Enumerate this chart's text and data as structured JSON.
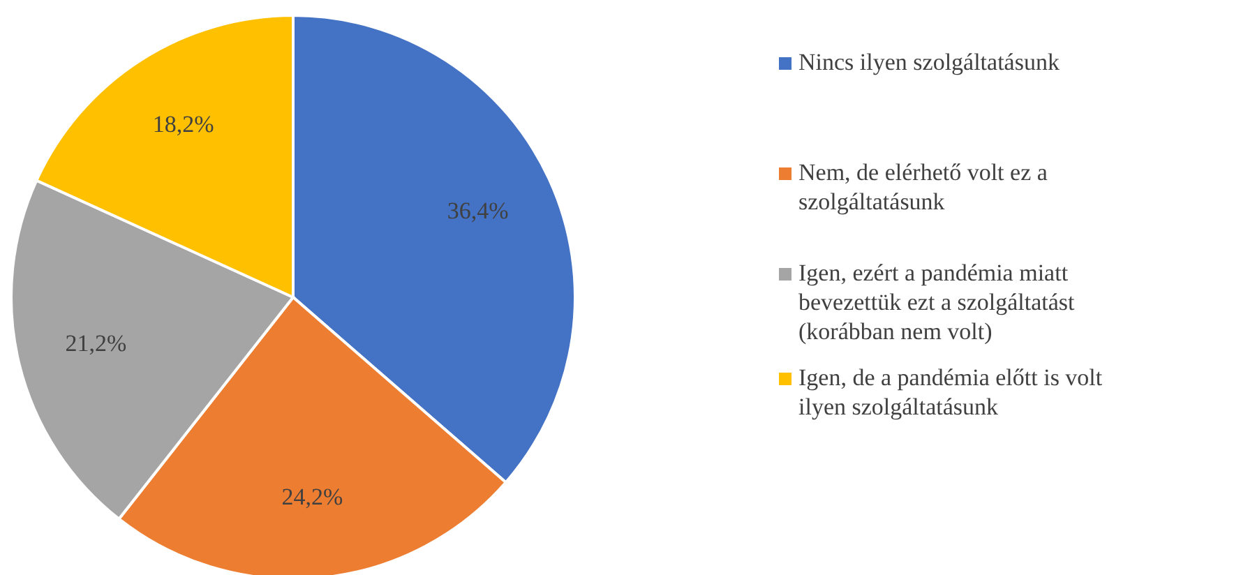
{
  "chart_data": {
    "type": "pie",
    "categories": [
      "Nincs ilyen szolgáltatásunk",
      "Nem, de elérhető volt ez a szolgáltatásunk",
      "Igen, ezért a pandémia miatt bevezettük ezt a szolgáltatást (korábban nem volt)",
      "Igen, de a pandémia előtt is volt ilyen szolgáltatásunk"
    ],
    "values": [
      36.4,
      24.2,
      21.2,
      18.2
    ],
    "colors": [
      "#4472c4",
      "#ed7d31",
      "#a5a5a5",
      "#ffc000"
    ],
    "value_labels": [
      "36,4%",
      "24,2%",
      "21,2%",
      "18,2%"
    ],
    "legend": "right"
  }
}
